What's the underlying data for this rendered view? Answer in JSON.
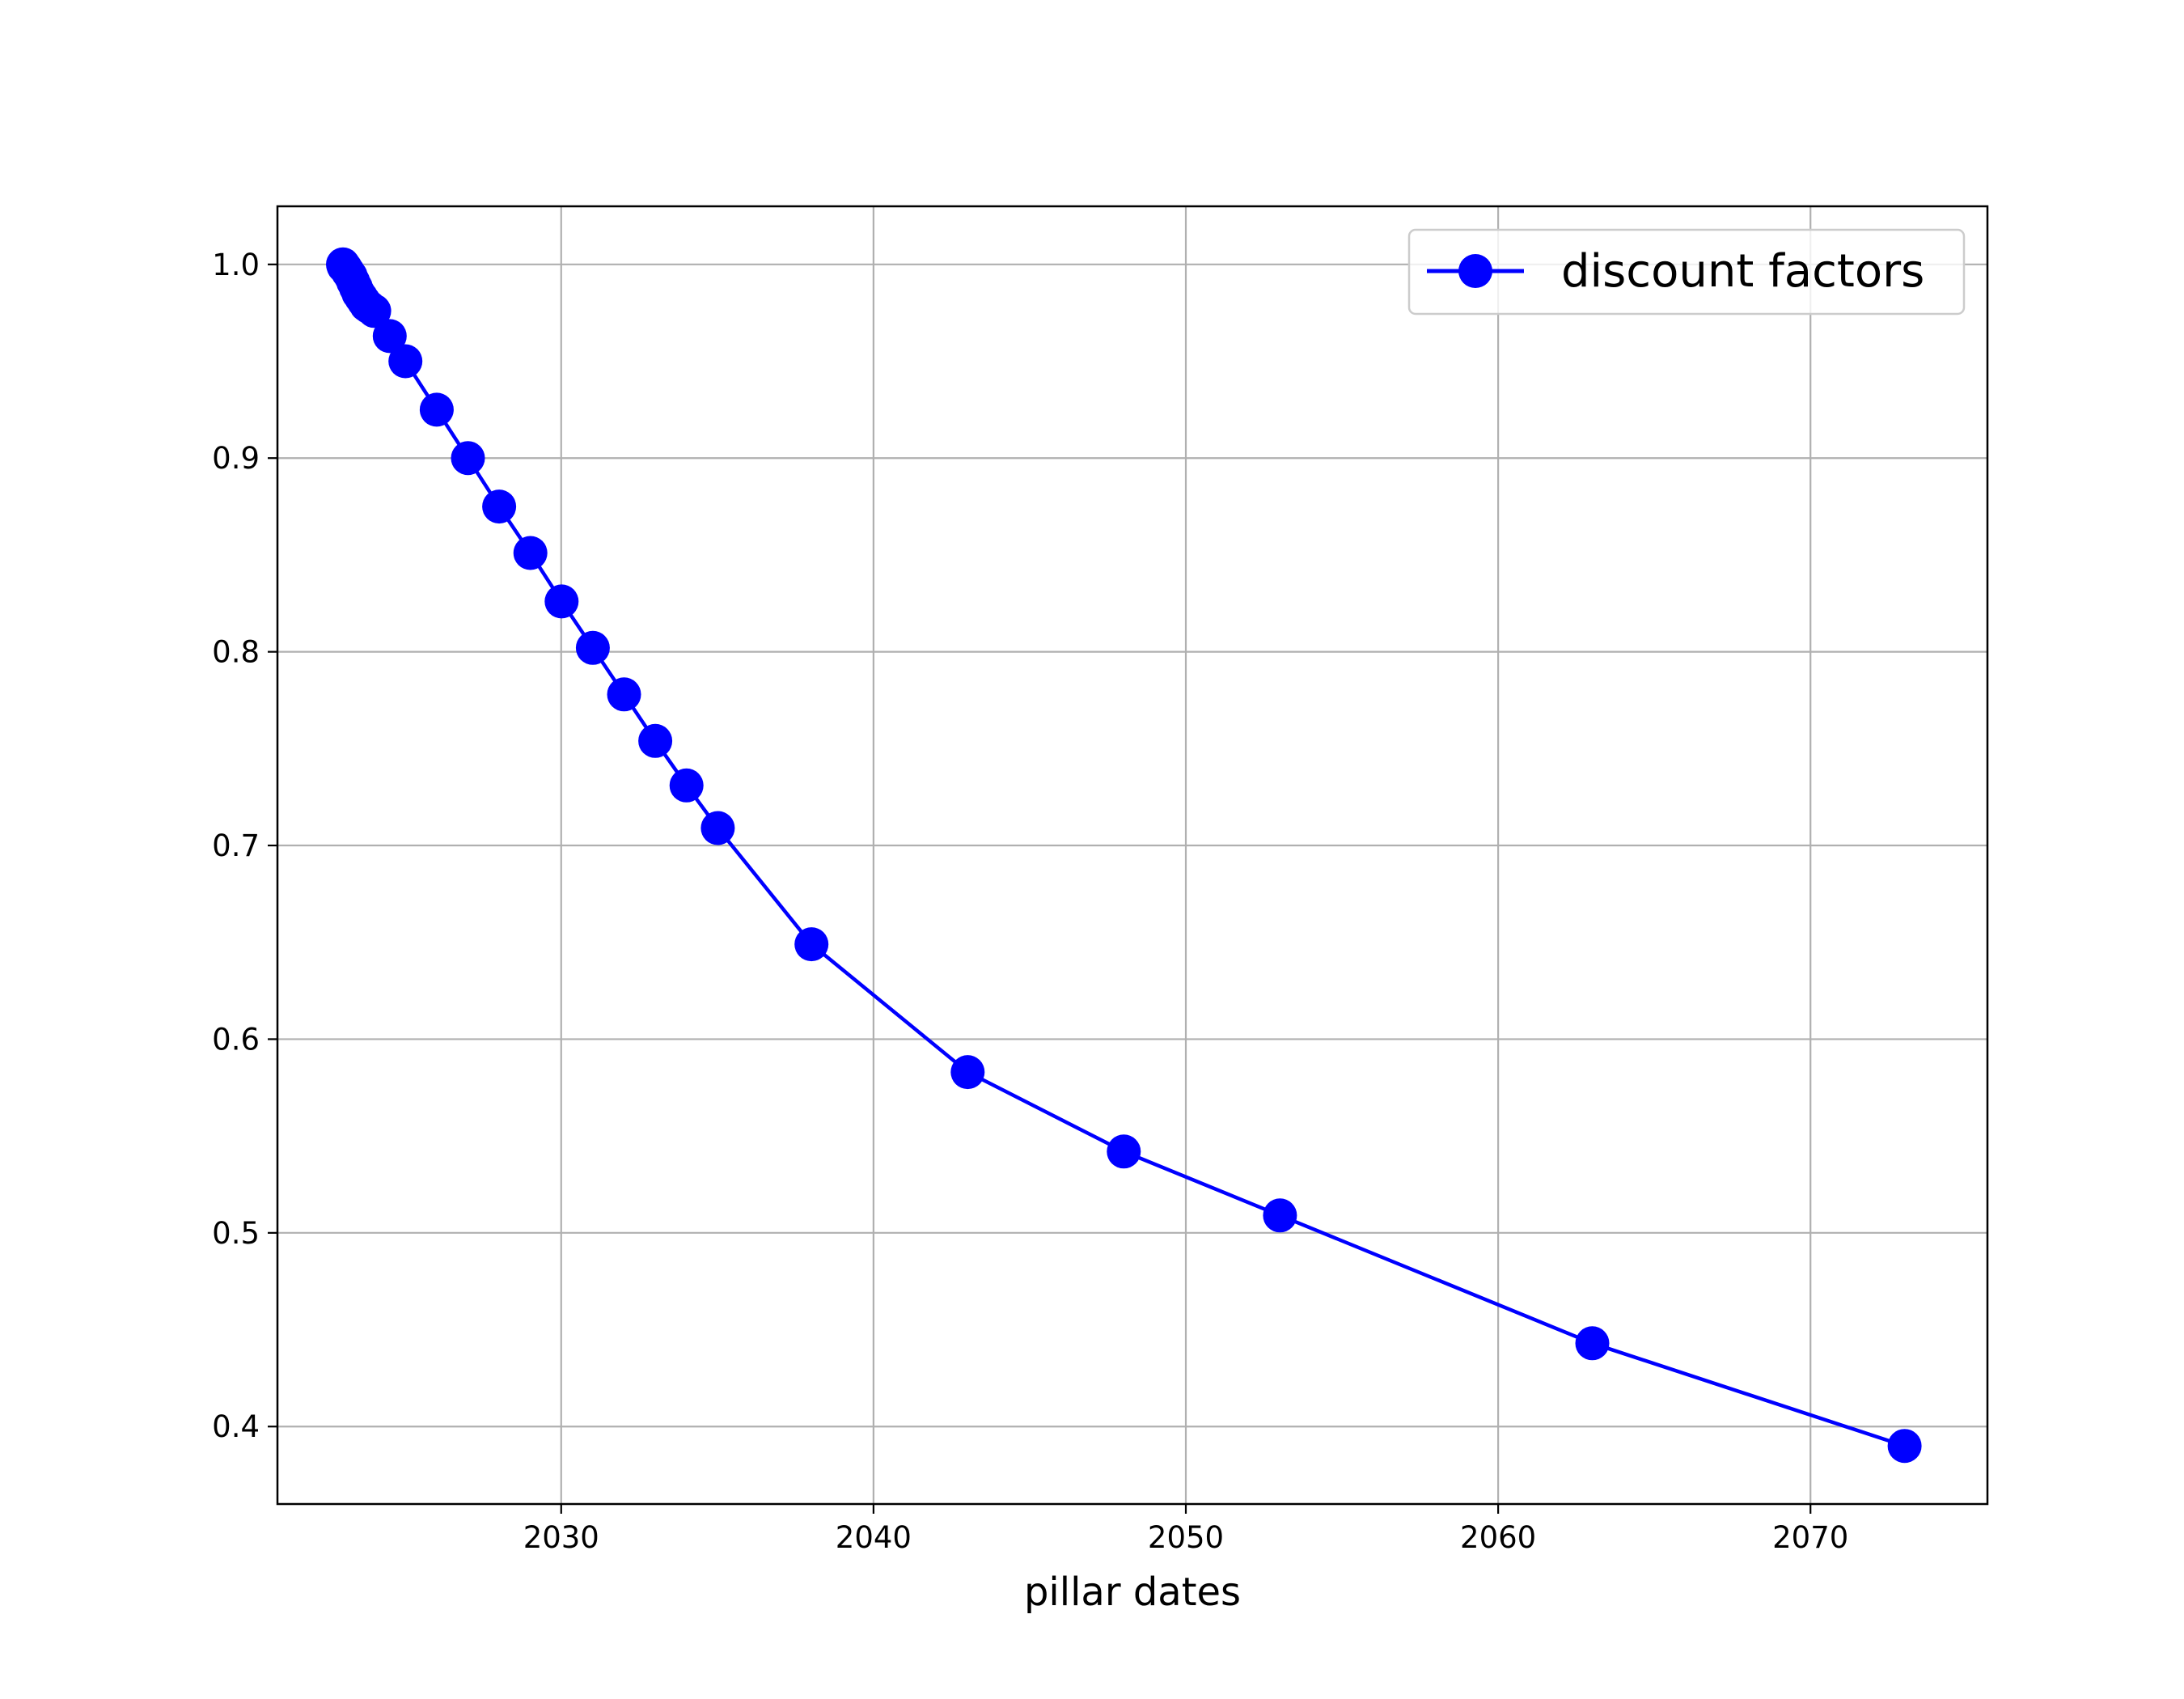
{
  "chart_data": {
    "type": "line",
    "title": "",
    "xlabel": "pillar dates",
    "ylabel": "",
    "x_ticks": [
      "2030",
      "2040",
      "2050",
      "2060",
      "2070"
    ],
    "y_ticks": [
      "0.4",
      "0.5",
      "0.6",
      "0.7",
      "0.8",
      "0.9",
      "1.0"
    ],
    "xlim": [
      "2020-12-01",
      "2075-09-01"
    ],
    "ylim": [
      0.36,
      1.03
    ],
    "grid": true,
    "legend_position": "top-right",
    "series": [
      {
        "name": "discount factors",
        "color": "#0000ff",
        "marker": "circle",
        "points": [
          {
            "x": "2023-01-06",
            "y": 1.0
          },
          {
            "x": "2023-01-13",
            "y": 0.999
          },
          {
            "x": "2023-01-20",
            "y": 0.999
          },
          {
            "x": "2023-02-06",
            "y": 0.998
          },
          {
            "x": "2023-03-06",
            "y": 0.996
          },
          {
            "x": "2023-04-06",
            "y": 0.994
          },
          {
            "x": "2023-05-06",
            "y": 0.991
          },
          {
            "x": "2023-06-06",
            "y": 0.988
          },
          {
            "x": "2023-07-06",
            "y": 0.985
          },
          {
            "x": "2023-08-06",
            "y": 0.983
          },
          {
            "x": "2023-09-06",
            "y": 0.981
          },
          {
            "x": "2023-10-06",
            "y": 0.979
          },
          {
            "x": "2023-11-06",
            "y": 0.978
          },
          {
            "x": "2024-01-06",
            "y": 0.976
          },
          {
            "x": "2024-07-06",
            "y": 0.963
          },
          {
            "x": "2025-01-06",
            "y": 0.95
          },
          {
            "x": "2026-01-06",
            "y": 0.925
          },
          {
            "x": "2027-01-06",
            "y": 0.9
          },
          {
            "x": "2028-01-06",
            "y": 0.875
          },
          {
            "x": "2029-01-06",
            "y": 0.851
          },
          {
            "x": "2030-01-06",
            "y": 0.826
          },
          {
            "x": "2031-01-06",
            "y": 0.802
          },
          {
            "x": "2032-01-06",
            "y": 0.778
          },
          {
            "x": "2033-01-06",
            "y": 0.754
          },
          {
            "x": "2034-01-06",
            "y": 0.731
          },
          {
            "x": "2035-01-06",
            "y": 0.709
          },
          {
            "x": "2038-01-06",
            "y": 0.649
          },
          {
            "x": "2043-01-06",
            "y": 0.583
          },
          {
            "x": "2048-01-06",
            "y": 0.542
          },
          {
            "x": "2053-01-06",
            "y": 0.509
          },
          {
            "x": "2063-01-06",
            "y": 0.443
          },
          {
            "x": "2073-01-06",
            "y": 0.39
          }
        ]
      }
    ]
  }
}
